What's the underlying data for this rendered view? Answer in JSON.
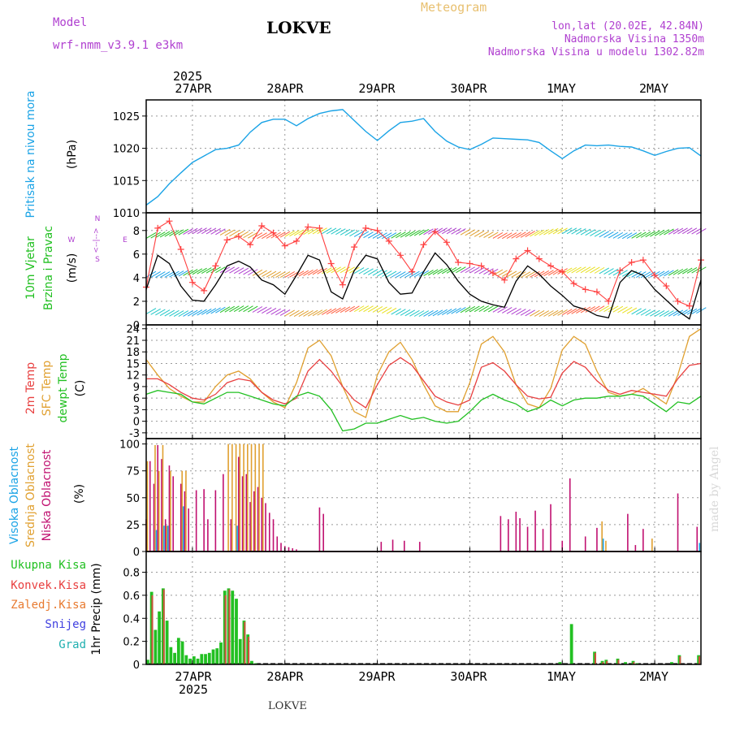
{
  "header": {
    "model_label": "Model",
    "model_name": "wrf-nmm_v3.9.1 e3km",
    "station": "LOKVE",
    "meteogram": "Meteogram",
    "lonlat": "lon,lat (20.02E, 42.84N)",
    "altitude": "Nadmorska Visina 1350m",
    "model_altitude": "Nadmorska Visina u modelu 1302.82m",
    "footer_station": "LOKVE",
    "watermark": "made by Angel"
  },
  "colors": {
    "pressure": "#1aa3e6",
    "temp2m": "#e84040",
    "sfc_temp": "#e0a030",
    "dewpt": "#22c022",
    "wind_speed": "#000000",
    "gust": "#ff4040",
    "high_cloud": "#1aa3e6",
    "mid_cloud": "#e0a030",
    "low_cloud": "#c01070",
    "total_precip": "#22c022",
    "conv_precip": "#e84040",
    "purple": "#b040d0",
    "orange": "#e8a040"
  },
  "time_axis": {
    "year": "2025",
    "day_labels": [
      "27APR",
      "28APR",
      "29APR",
      "30APR",
      "1MAY",
      "2MAY"
    ]
  },
  "panels": {
    "pressure": {
      "ylabel": "Pritisak na nivou mora",
      "unit": "(hPa)"
    },
    "wind": {
      "ylabel1": "10m Vjetar",
      "ylabel2": "Brzina i Pravac",
      "unit": "(m/s)",
      "compass": [
        "N",
        "S",
        "W",
        "E",
        "<--|-->"
      ]
    },
    "temp": {
      "label_2m": "2m Temp",
      "label_sfc": "SFC Temp",
      "label_dewpt": "dewpt Temp",
      "unit": "(C)"
    },
    "cloud": {
      "label_high": "Visoka Oblacnost",
      "label_mid": "Srednja Oblacnost",
      "label_low": "Niska Oblacnost",
      "unit": "(%)"
    },
    "precip": {
      "label_total": "Ukupna Kisa",
      "label_conv": "Konvek.Kisa",
      "label_frozen": "Zaledj.Kisa",
      "label_snow": "Snijeg",
      "label_hail": "Grad",
      "unit": "1hr Precip (mm)"
    }
  },
  "chart_data": [
    {
      "type": "line",
      "title": "Pritisak na nivou mora",
      "ylabel": "(hPa)",
      "ylim": [
        1010,
        1027.5
      ],
      "yticks": [
        1010,
        1015,
        1020,
        1025
      ],
      "x_hours": [
        0,
        3,
        6,
        9,
        12,
        15,
        18,
        21,
        24,
        27,
        30,
        33,
        36,
        39,
        42,
        45,
        48,
        51,
        54,
        57,
        60,
        63,
        66,
        69,
        72,
        75,
        78,
        81,
        84,
        87,
        90,
        93,
        96,
        99,
        102,
        105,
        108,
        111,
        114,
        117,
        120,
        123,
        126,
        129,
        132,
        135,
        138,
        141,
        144
      ],
      "values": [
        1011.2,
        1012.5,
        1014.5,
        1016.2,
        1017.8,
        1018.8,
        1019.8,
        1020.0,
        1020.5,
        1022.5,
        1024.0,
        1024.5,
        1024.5,
        1023.5,
        1024.6,
        1025.4,
        1025.8,
        1026.0,
        1024.3,
        1022.6,
        1021.2,
        1022.7,
        1024.0,
        1024.2,
        1024.6,
        1022.6,
        1021.1,
        1020.2,
        1019.8,
        1020.6,
        1021.6,
        1021.5,
        1021.4,
        1021.3,
        1020.9,
        1019.6,
        1018.4,
        1019.6,
        1020.5,
        1020.4,
        1020.5,
        1020.3,
        1020.2,
        1019.6,
        1018.9,
        1019.5,
        1020.0,
        1020.1,
        1018.8
      ]
    },
    {
      "type": "line",
      "title": "10m Vjetar Brzina i Pravac",
      "ylabel": "(m/s)",
      "ylim": [
        0,
        9.5
      ],
      "yticks": [
        0,
        2,
        4,
        6,
        8
      ],
      "x_hours": [
        0,
        3,
        6,
        9,
        12,
        15,
        18,
        21,
        24,
        27,
        30,
        33,
        36,
        39,
        42,
        45,
        48,
        51,
        54,
        57,
        60,
        63,
        66,
        69,
        72,
        75,
        78,
        81,
        84,
        87,
        90,
        93,
        96,
        99,
        102,
        105,
        108,
        111,
        114,
        117,
        120,
        123,
        126,
        129,
        132,
        135,
        138,
        141,
        144
      ],
      "series": [
        {
          "name": "Brzina vjetra",
          "values": [
            3.0,
            5.9,
            5.2,
            3.3,
            2.1,
            2.0,
            3.4,
            5.0,
            5.4,
            4.9,
            3.8,
            3.4,
            2.6,
            4.2,
            5.9,
            5.5,
            2.8,
            2.2,
            4.6,
            5.9,
            5.6,
            3.6,
            2.6,
            2.7,
            4.5,
            6.1,
            5.1,
            3.7,
            2.6,
            2.0,
            1.7,
            1.5,
            3.7,
            5.0,
            4.3,
            3.3,
            2.5,
            1.6,
            1.3,
            0.8,
            0.6,
            3.6,
            4.6,
            4.2,
            3.0,
            2.1,
            1.2,
            0.5,
            3.8
          ]
        },
        {
          "name": "Udari",
          "values": [
            3.2,
            8.2,
            8.8,
            6.4,
            3.6,
            2.9,
            5.0,
            7.2,
            7.5,
            6.8,
            8.4,
            7.8,
            6.7,
            7.1,
            8.3,
            8.2,
            5.2,
            3.4,
            6.6,
            8.2,
            8.0,
            7.1,
            5.9,
            4.5,
            6.8,
            7.9,
            7.0,
            5.3,
            5.2,
            5.0,
            4.4,
            3.8,
            5.6,
            6.3,
            5.6,
            5.0,
            4.5,
            3.5,
            3.0,
            2.8,
            2.0,
            4.6,
            5.3,
            5.5,
            4.2,
            3.3,
            2.0,
            1.6,
            5.5
          ]
        }
      ]
    },
    {
      "type": "line",
      "title": "Temperatura",
      "ylabel": "(C)",
      "ylim": [
        -4.5,
        25
      ],
      "yticks": [
        -3,
        0,
        3,
        6,
        9,
        12,
        15,
        18,
        21,
        24
      ],
      "x_hours": [
        0,
        3,
        6,
        9,
        12,
        15,
        18,
        21,
        24,
        27,
        30,
        33,
        36,
        39,
        42,
        45,
        48,
        51,
        54,
        57,
        60,
        63,
        66,
        69,
        72,
        75,
        78,
        81,
        84,
        87,
        90,
        93,
        96,
        99,
        102,
        105,
        108,
        111,
        114,
        117,
        120,
        123,
        126,
        129,
        132,
        135,
        138,
        141,
        144
      ],
      "series": [
        {
          "name": "2m Temp",
          "values": [
            11,
            11,
            9.5,
            7.5,
            6,
            5.5,
            7,
            10,
            11,
            10.5,
            7.5,
            5.5,
            4.5,
            6,
            13,
            16,
            13,
            9,
            5.5,
            3.5,
            9.5,
            14.5,
            16.5,
            14.5,
            10.5,
            6.5,
            5,
            4.2,
            5.5,
            14,
            15.2,
            13,
            9.5,
            6.5,
            5.8,
            6.2,
            12.5,
            15.5,
            14,
            10.5,
            8,
            7,
            8,
            7.5,
            7,
            6.5,
            11,
            14.5,
            15
          ]
        },
        {
          "name": "SFC Temp",
          "values": [
            16,
            12,
            8.5,
            6.5,
            5,
            5,
            9,
            12,
            13,
            11,
            7.5,
            5,
            3.5,
            10,
            19,
            21,
            17,
            9,
            2.5,
            1,
            12,
            18,
            20.5,
            16,
            9.5,
            4,
            2.5,
            2.5,
            10,
            20,
            22,
            18,
            9.5,
            4.5,
            3.5,
            8.5,
            18.5,
            22,
            20,
            13,
            7.5,
            6.5,
            7,
            8.5,
            6.5,
            4.5,
            12,
            22,
            24
          ]
        },
        {
          "name": "dewpt Temp",
          "values": [
            7,
            8,
            7.5,
            7,
            5,
            4.5,
            6,
            7.5,
            7.5,
            6.5,
            5.5,
            4.5,
            4,
            6.5,
            7.5,
            6.5,
            3,
            -2.5,
            -2,
            -0.5,
            -0.5,
            0.5,
            1.5,
            0.5,
            1,
            0,
            -0.5,
            0,
            2.5,
            5.5,
            7,
            5.5,
            4.5,
            2.5,
            3.5,
            5.5,
            4,
            5.5,
            6,
            6,
            6.5,
            6.5,
            7,
            6.5,
            4.5,
            2.5,
            5,
            4.5,
            6.5
          ]
        }
      ]
    },
    {
      "type": "bar",
      "title": "Oblacnost",
      "ylabel": "(%)",
      "ylim": [
        0,
        105
      ],
      "yticks": [
        0,
        25,
        50,
        75,
        100
      ],
      "series": [
        {
          "name": "Niska Oblacnost",
          "x_hours": [
            0,
            1,
            2,
            3,
            4,
            5,
            6,
            7,
            9,
            10,
            11,
            13,
            15,
            16,
            18,
            20,
            22,
            24,
            25,
            26,
            27,
            28,
            29,
            30,
            31,
            32,
            33,
            34,
            35,
            36,
            37,
            38,
            39,
            45,
            46,
            61,
            64,
            67,
            71,
            92,
            94,
            96,
            97,
            99,
            101,
            103,
            105,
            108,
            110,
            114,
            117,
            125,
            127,
            129,
            138,
            143
          ],
          "values": [
            30,
            84,
            63,
            99,
            86,
            30,
            80,
            70,
            63,
            56,
            40,
            57,
            58,
            30,
            57,
            72,
            30,
            88,
            70,
            72,
            46,
            56,
            60,
            50,
            45,
            36,
            30,
            14,
            8,
            5,
            4,
            3,
            2,
            41,
            35,
            9,
            11,
            10,
            9,
            33,
            30,
            37,
            31,
            23,
            38,
            21,
            44,
            10,
            68,
            14,
            22,
            35,
            6,
            21,
            54,
            23
          ]
        },
        {
          "name": "Srednja Oblacnost",
          "x_hours": [
            0,
            2,
            3,
            4,
            5,
            6,
            9,
            10,
            21,
            22,
            23,
            24,
            25,
            26,
            27,
            28,
            29,
            30,
            118,
            119,
            131
          ],
          "values": [
            84,
            99,
            75,
            99,
            24,
            75,
            75,
            75,
            100,
            100,
            100,
            100,
            100,
            100,
            100,
            100,
            100,
            100,
            28,
            10,
            12
          ]
        },
        {
          "name": "Visoka Oblacnost",
          "x_hours": [
            2,
            4,
            5,
            9,
            23,
            118,
            143
          ],
          "values": [
            20,
            24,
            24,
            42,
            24,
            12,
            8
          ]
        }
      ]
    },
    {
      "type": "bar",
      "title": "1hr Precip",
      "ylabel": "1hr Precip (mm)",
      "ylim": [
        0,
        0.98
      ],
      "yticks": [
        0,
        0.2,
        0.4,
        0.6,
        0.8
      ],
      "x_hours": [
        0,
        1,
        2,
        3,
        4,
        5,
        6,
        7,
        8,
        9,
        10,
        11,
        12,
        13,
        14,
        15,
        16,
        17,
        18,
        19,
        20,
        21,
        22,
        23,
        24,
        25,
        26,
        27,
        28,
        29,
        30,
        31,
        96,
        97,
        98,
        99,
        100,
        101,
        102,
        103,
        104,
        105,
        106,
        107,
        108,
        109,
        110,
        111,
        112,
        113,
        114,
        115,
        116,
        117,
        118,
        119,
        120,
        121,
        122,
        123,
        124,
        125,
        126,
        127,
        128,
        129,
        130,
        131,
        132,
        133,
        134,
        135,
        136,
        137,
        138,
        139,
        140,
        141,
        142,
        143
      ],
      "series": [
        {
          "name": "Ukupna Kisa",
          "values": [
            0.04,
            0.63,
            0.3,
            0.46,
            0.66,
            0.38,
            0.15,
            0.1,
            0.23,
            0.2,
            0.08,
            0.05,
            0.07,
            0.05,
            0.09,
            0.09,
            0.1,
            0.13,
            0.14,
            0.19,
            0.64,
            0.66,
            0.64,
            0.57,
            0.22,
            0.38,
            0.26,
            0.03,
            0.01,
            0.0,
            0.0,
            0.0,
            0.0,
            0.0,
            0.0,
            0.0,
            0.0,
            0.0,
            0.0,
            0.0,
            0.0,
            0.0,
            0.0,
            0.02,
            0.0,
            0.0,
            0.35,
            0.0,
            0.0,
            0.0,
            0.0,
            0.0,
            0.11,
            0.0,
            0.03,
            0.04,
            0.0,
            0.0,
            0.05,
            0.0,
            0.02,
            0.0,
            0.03,
            0.01,
            0.0,
            0.0,
            0.0,
            0.0,
            0.0,
            0.0,
            0.0,
            0.0,
            0.02,
            0.0,
            0.08,
            0.0,
            0.0,
            0.0,
            0.0,
            0.08
          ]
        },
        {
          "name": "Konvek.Kisa",
          "values": [
            0.0,
            0.6,
            0.0,
            0.0,
            0.65,
            0.0,
            0.0,
            0.0,
            0.0,
            0.0,
            0.0,
            0.0,
            0.0,
            0.0,
            0.0,
            0.0,
            0.0,
            0.0,
            0.0,
            0.0,
            0.6,
            0.65,
            0.0,
            0.0,
            0.0,
            0.37,
            0.24,
            0.0,
            0.0,
            0.0,
            0.0,
            0.0,
            0.0,
            0.0,
            0.0,
            0.0,
            0.0,
            0.0,
            0.0,
            0.0,
            0.0,
            0.0,
            0.0,
            0.0,
            0.0,
            0.0,
            0.0,
            0.0,
            0.0,
            0.0,
            0.0,
            0.0,
            0.1,
            0.0,
            0.02,
            0.03,
            0.0,
            0.0,
            0.04,
            0.0,
            0.0,
            0.0,
            0.02,
            0.0,
            0.0,
            0.0,
            0.0,
            0.0,
            0.0,
            0.0,
            0.0,
            0.0,
            0.0,
            0.0,
            0.07,
            0.0,
            0.0,
            0.0,
            0.0,
            0.07
          ]
        }
      ]
    }
  ]
}
